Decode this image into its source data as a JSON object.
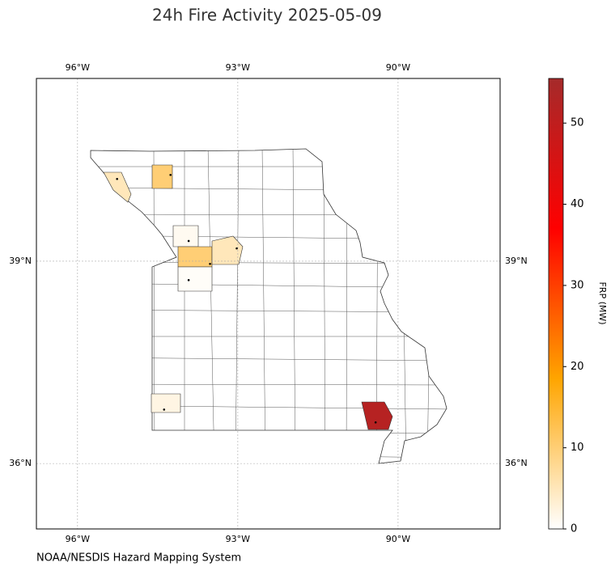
{
  "chart_data": {
    "type": "map",
    "title": "24h Fire Activity 2025-05-09",
    "source": "NOAA/NESDIS Hazard Mapping System",
    "xlim": [
      -96.77,
      -88.09
    ],
    "ylim": [
      35.03,
      41.71
    ],
    "xticks": [
      {
        "value": -96,
        "label": "96°W"
      },
      {
        "value": -93,
        "label": "93°W"
      },
      {
        "value": -90,
        "label": "90°W"
      }
    ],
    "yticks": [
      {
        "value": 36,
        "label": "36°N"
      },
      {
        "value": 39,
        "label": "39°N"
      }
    ],
    "grid": true,
    "fires": {
      "lon": [
        -95.26,
        -94.26,
        -93.92,
        -93.52,
        -93.02,
        -93.92,
        -94.38,
        -90.42
      ],
      "lat": [
        40.22,
        40.28,
        39.3,
        38.96,
        39.19,
        38.72,
        36.8,
        36.61
      ],
      "frp": [
        5,
        10,
        1,
        10,
        5,
        0.5,
        2,
        52
      ]
    },
    "colorbar": {
      "label": "FRP (MW)",
      "lim": [
        0,
        55.5
      ],
      "ticks": [
        0,
        10,
        20,
        30,
        40,
        50
      ],
      "colormap": [
        "#ffffff",
        "#ffa500",
        "#ff0000",
        "#a52a2a"
      ]
    }
  }
}
